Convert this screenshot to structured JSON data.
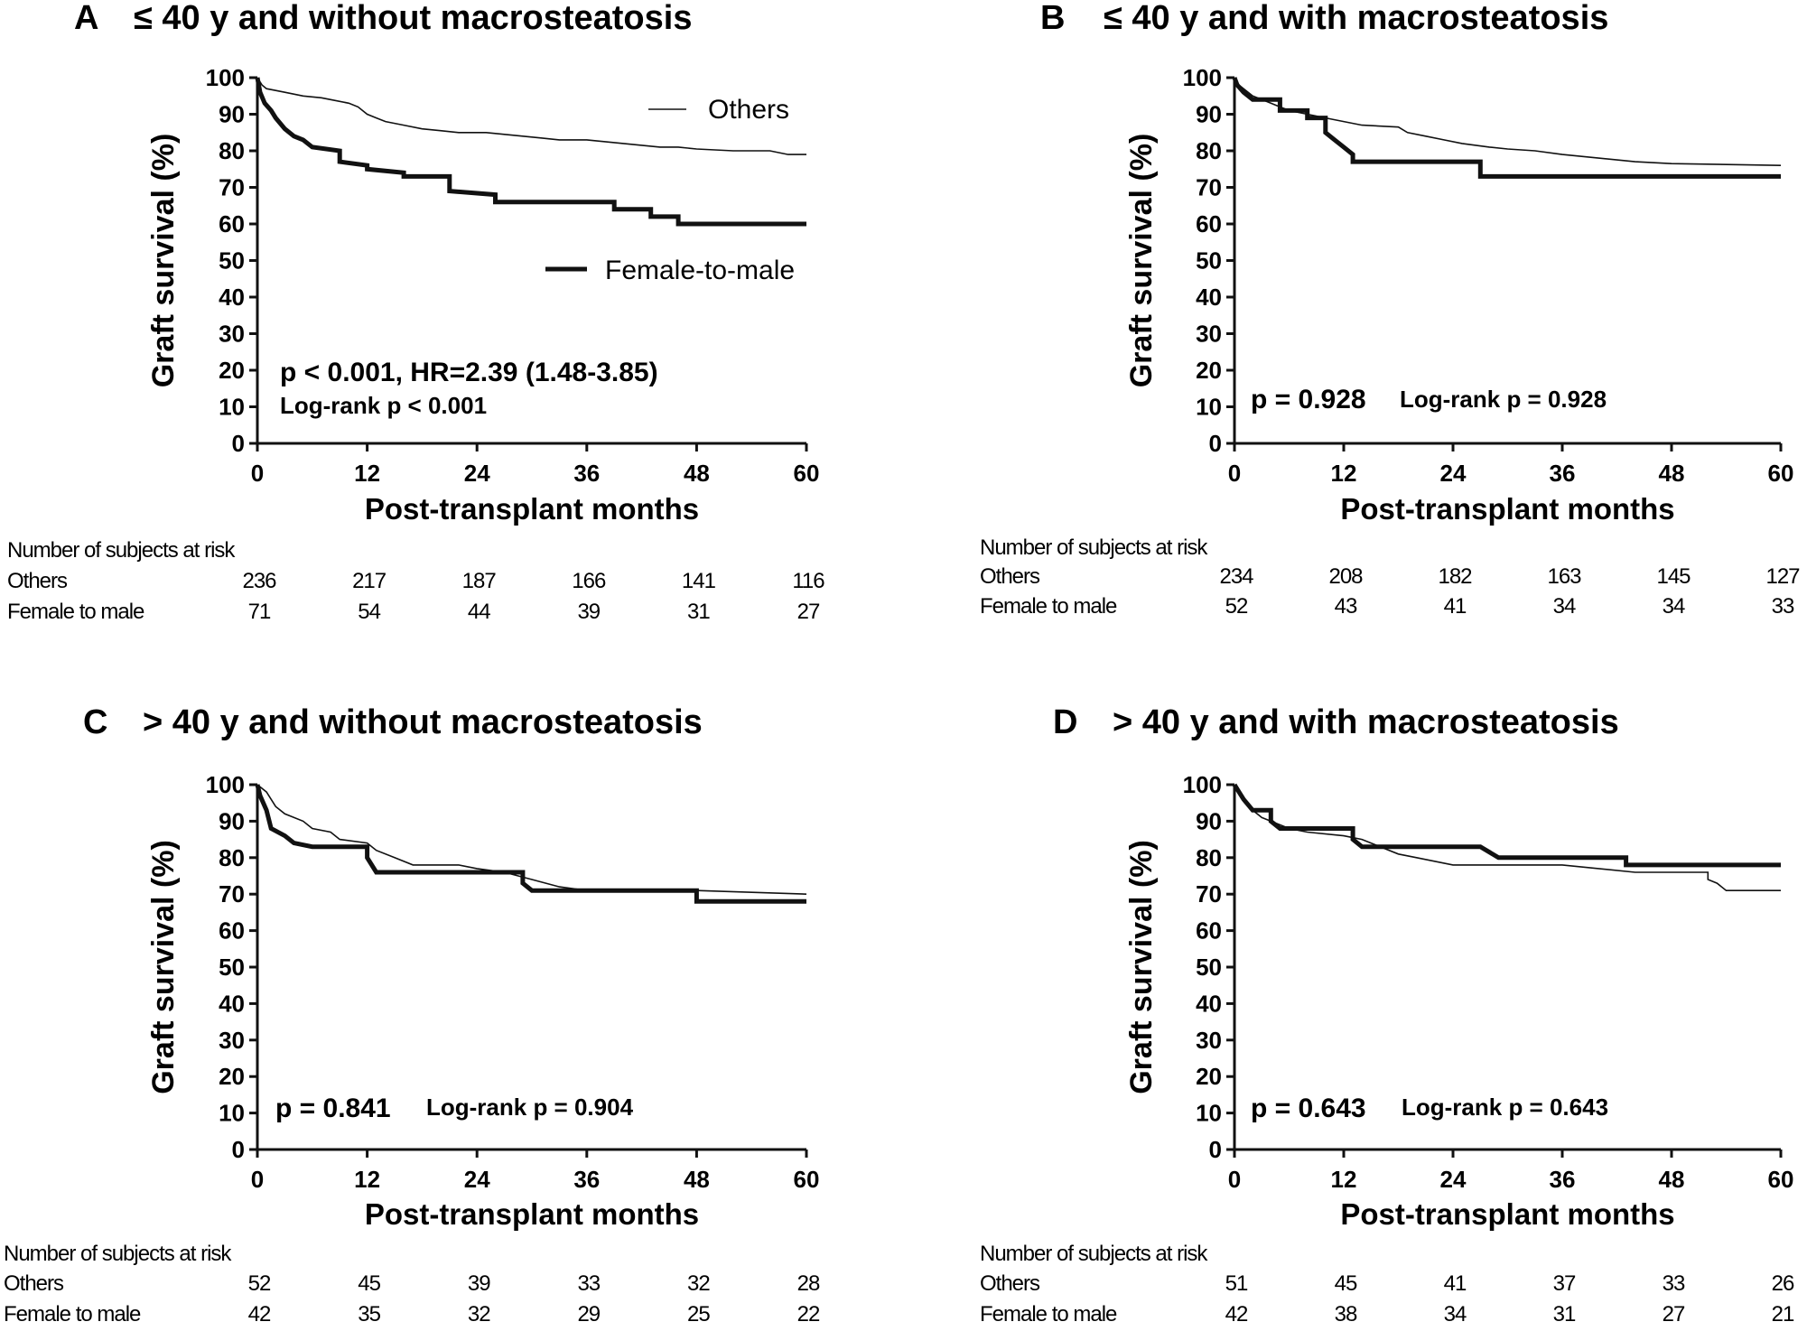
{
  "chart_data": [
    {
      "panel": "A",
      "type": "line",
      "title": "≤ 40 y and without macrosteatosis",
      "xlabel": "Post-transplant months",
      "ylabel": "Graft survival  (%)",
      "xlim": [
        0,
        60
      ],
      "ylim": [
        0,
        100
      ],
      "xticks": [
        0,
        12,
        24,
        36,
        48,
        60
      ],
      "yticks": [
        0,
        10,
        20,
        30,
        40,
        50,
        60,
        70,
        80,
        90,
        100
      ],
      "legend": [
        "Others",
        "Female-to-male"
      ],
      "annotation_main": "p < 0.001, HR=2.39 (1.48-3.85)",
      "annotation_logrank": "Log-rank p < 0.001",
      "series": [
        {
          "name": "Others",
          "style": "thin",
          "points": [
            [
              0,
              100
            ],
            [
              0.5,
              98
            ],
            [
              1,
              97
            ],
            [
              2,
              96.5
            ],
            [
              3,
              96
            ],
            [
              5,
              95
            ],
            [
              7,
              94.5
            ],
            [
              8,
              94
            ],
            [
              10,
              93
            ],
            [
              11,
              92
            ],
            [
              12,
              90
            ],
            [
              13,
              89
            ],
            [
              14,
              88
            ],
            [
              16,
              87
            ],
            [
              18,
              86
            ],
            [
              20,
              85.5
            ],
            [
              22,
              85
            ],
            [
              25,
              85
            ],
            [
              27,
              84.5
            ],
            [
              29,
              84
            ],
            [
              31,
              83.5
            ],
            [
              33,
              83
            ],
            [
              36,
              83
            ],
            [
              38,
              82.5
            ],
            [
              40,
              82
            ],
            [
              42,
              81.5
            ],
            [
              44,
              81
            ],
            [
              46,
              81
            ],
            [
              48,
              80.5
            ],
            [
              52,
              80
            ],
            [
              56,
              80
            ],
            [
              58,
              79
            ],
            [
              60,
              79
            ]
          ]
        },
        {
          "name": "Female-to-male",
          "style": "thick",
          "points": [
            [
              0,
              100
            ],
            [
              0.3,
              96
            ],
            [
              0.8,
              93
            ],
            [
              1.5,
              91
            ],
            [
              2,
              89
            ],
            [
              3,
              86
            ],
            [
              4,
              84
            ],
            [
              5,
              83
            ],
            [
              6,
              81
            ],
            [
              9,
              80
            ],
            [
              9,
              77
            ],
            [
              12,
              76
            ],
            [
              12,
              75
            ],
            [
              16,
              74
            ],
            [
              16,
              73
            ],
            [
              21,
              73
            ],
            [
              21,
              69
            ],
            [
              26,
              68
            ],
            [
              26,
              66
            ],
            [
              39,
              66
            ],
            [
              39,
              64
            ],
            [
              43,
              64
            ],
            [
              43,
              62
            ],
            [
              46,
              62
            ],
            [
              46,
              60
            ],
            [
              60,
              60
            ]
          ]
        }
      ],
      "risk_table": {
        "header": "Number of subjects at risk",
        "rows": [
          {
            "label": "Others",
            "values": [
              "236",
              "217",
              "187",
              "166",
              "141",
              "116"
            ]
          },
          {
            "label": "Female to male",
            "values": [
              "71",
              "54",
              "44",
              "39",
              "31",
              "27"
            ]
          }
        ]
      }
    },
    {
      "panel": "B",
      "type": "line",
      "title": "≤ 40 y and with macrosteatosis",
      "xlabel": "Post-transplant months",
      "ylabel": "Graft survival  (%)",
      "xlim": [
        0,
        60
      ],
      "ylim": [
        0,
        100
      ],
      "xticks": [
        0,
        12,
        24,
        36,
        48,
        60
      ],
      "yticks": [
        0,
        10,
        20,
        30,
        40,
        50,
        60,
        70,
        80,
        90,
        100
      ],
      "annotation_main": "p = 0.928",
      "annotation_logrank": "Log-rank p = 0.928",
      "series": [
        {
          "name": "Others",
          "style": "thin",
          "points": [
            [
              0,
              100
            ],
            [
              0.5,
              98
            ],
            [
              1,
              97
            ],
            [
              2,
              95
            ],
            [
              3,
              94
            ],
            [
              4,
              93
            ],
            [
              5,
              92
            ],
            [
              6,
              91
            ],
            [
              8,
              90
            ],
            [
              10,
              89
            ],
            [
              12,
              88
            ],
            [
              14,
              87
            ],
            [
              18,
              86.5
            ],
            [
              19,
              85
            ],
            [
              21,
              84
            ],
            [
              23,
              83
            ],
            [
              25,
              82
            ],
            [
              28,
              81
            ],
            [
              30,
              80.5
            ],
            [
              33,
              80
            ],
            [
              36,
              79
            ],
            [
              40,
              78
            ],
            [
              44,
              77
            ],
            [
              48,
              76.5
            ],
            [
              60,
              76
            ]
          ]
        },
        {
          "name": "Female-to-male",
          "style": "thick",
          "points": [
            [
              0,
              100
            ],
            [
              0.3,
              98
            ],
            [
              1,
              96
            ],
            [
              2,
              94
            ],
            [
              5,
              94
            ],
            [
              5,
              91
            ],
            [
              8,
              91
            ],
            [
              8,
              89
            ],
            [
              10,
              89
            ],
            [
              10,
              85
            ],
            [
              11,
              83
            ],
            [
              12,
              81
            ],
            [
              13,
              79
            ],
            [
              13,
              77
            ],
            [
              27,
              77
            ],
            [
              27,
              73
            ],
            [
              60,
              73
            ]
          ]
        }
      ],
      "risk_table": {
        "header": "Number of subjects at risk",
        "rows": [
          {
            "label": "Others",
            "values": [
              "234",
              "208",
              "182",
              "163",
              "145",
              "127"
            ]
          },
          {
            "label": "Female to male",
            "values": [
              "52",
              "43",
              "41",
              "34",
              "34",
              "33"
            ]
          }
        ]
      }
    },
    {
      "panel": "C",
      "type": "line",
      "title": "> 40 y and without macrosteatosis",
      "xlabel": "Post-transplant months",
      "ylabel": "Graft survival  (%)",
      "xlim": [
        0,
        60
      ],
      "ylim": [
        0,
        100
      ],
      "xticks": [
        0,
        12,
        24,
        36,
        48,
        60
      ],
      "yticks": [
        0,
        10,
        20,
        30,
        40,
        50,
        60,
        70,
        80,
        90,
        100
      ],
      "annotation_main": "p = 0.841",
      "annotation_logrank": "Log-rank p = 0.904",
      "series": [
        {
          "name": "Others",
          "style": "thin",
          "points": [
            [
              0,
              100
            ],
            [
              1,
              98
            ],
            [
              2,
              94
            ],
            [
              3,
              92
            ],
            [
              5,
              90
            ],
            [
              6,
              88
            ],
            [
              8,
              87
            ],
            [
              9,
              85
            ],
            [
              12,
              84
            ],
            [
              13,
              82
            ],
            [
              15,
              80
            ],
            [
              17,
              78
            ],
            [
              22,
              78
            ],
            [
              24,
              77
            ],
            [
              27,
              76
            ],
            [
              30,
              74
            ],
            [
              33,
              72
            ],
            [
              36,
              71
            ],
            [
              48,
              71
            ],
            [
              60,
              70
            ]
          ]
        },
        {
          "name": "Female-to-male",
          "style": "thick",
          "points": [
            [
              0,
              100
            ],
            [
              0.3,
              97
            ],
            [
              1,
              93
            ],
            [
              1.5,
              88
            ],
            [
              3,
              86
            ],
            [
              4,
              84
            ],
            [
              6,
              83
            ],
            [
              12,
              83
            ],
            [
              12,
              80
            ],
            [
              13,
              76
            ],
            [
              29,
              76
            ],
            [
              29,
              73
            ],
            [
              30,
              71
            ],
            [
              48,
              71
            ],
            [
              48,
              68
            ],
            [
              60,
              68
            ]
          ]
        }
      ],
      "risk_table": {
        "header": "Number of subjects at risk",
        "rows": [
          {
            "label": "Others",
            "values": [
              "52",
              "45",
              "39",
              "33",
              "32",
              "28"
            ]
          },
          {
            "label": "Female to male",
            "values": [
              "42",
              "35",
              "32",
              "29",
              "25",
              "22"
            ]
          }
        ]
      }
    },
    {
      "panel": "D",
      "type": "line",
      "title": "> 40 y and with macrosteatosis",
      "xlabel": "Post-transplant months",
      "ylabel": "Graft survival  (%)",
      "xlim": [
        0,
        60
      ],
      "ylim": [
        0,
        100
      ],
      "xticks": [
        0,
        12,
        24,
        36,
        48,
        60
      ],
      "yticks": [
        0,
        10,
        20,
        30,
        40,
        50,
        60,
        70,
        80,
        90,
        100
      ],
      "annotation_main": "p = 0.643",
      "annotation_logrank": "Log-rank p = 0.643",
      "series": [
        {
          "name": "Others",
          "style": "thin",
          "points": [
            [
              0,
              100
            ],
            [
              0.5,
              98
            ],
            [
              1,
              96
            ],
            [
              2,
              93
            ],
            [
              3,
              91
            ],
            [
              4,
              90
            ],
            [
              6,
              88
            ],
            [
              8,
              87
            ],
            [
              12,
              86
            ],
            [
              14,
              85
            ],
            [
              16,
              83
            ],
            [
              18,
              81
            ],
            [
              20,
              80
            ],
            [
              24,
              78
            ],
            [
              30,
              78
            ],
            [
              36,
              78
            ],
            [
              44,
              76
            ],
            [
              52,
              76
            ],
            [
              52,
              74
            ],
            [
              53,
              73
            ],
            [
              54,
              71
            ],
            [
              60,
              71
            ]
          ]
        },
        {
          "name": "Female-to-male",
          "style": "thick",
          "points": [
            [
              0,
              100
            ],
            [
              0.5,
              98
            ],
            [
              1,
              96
            ],
            [
              2,
              93
            ],
            [
              4,
              93
            ],
            [
              4,
              90
            ],
            [
              5,
              88
            ],
            [
              13,
              88
            ],
            [
              13,
              85
            ],
            [
              14,
              83
            ],
            [
              17,
              83
            ],
            [
              27,
              83
            ],
            [
              29,
              80
            ],
            [
              43,
              80
            ],
            [
              43,
              78
            ],
            [
              60,
              78
            ]
          ]
        }
      ],
      "risk_table": {
        "header": "Number of subjects at risk",
        "rows": [
          {
            "label": "Others",
            "values": [
              "51",
              "45",
              "41",
              "37",
              "33",
              "26"
            ]
          },
          {
            "label": "Female to male",
            "values": [
              "42",
              "38",
              "34",
              "31",
              "27",
              "21"
            ]
          }
        ]
      }
    }
  ]
}
